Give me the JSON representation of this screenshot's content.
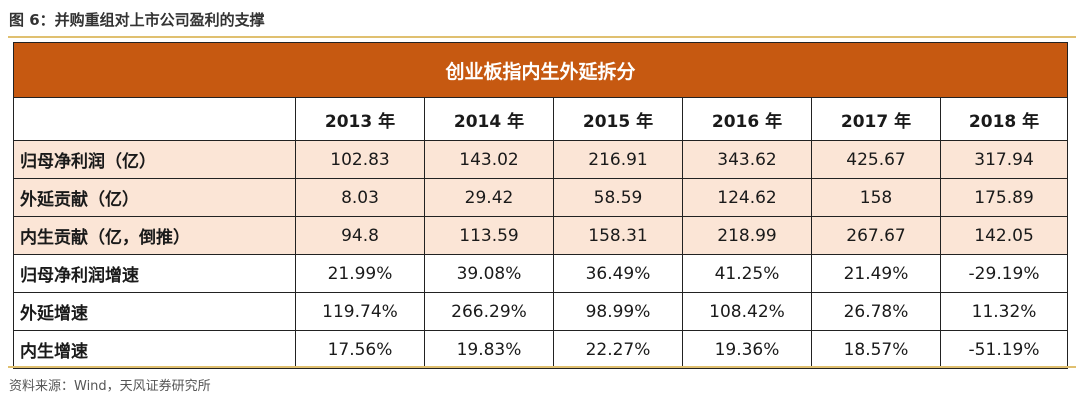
{
  "figure": {
    "title": "图 6：并购重组对上市公司盈利的支撑",
    "source": "资料来源：Wind，天风证券研究所"
  },
  "table": {
    "banner": "创业板指内生外延拆分",
    "years": [
      "2013 年",
      "2014 年",
      "2015 年",
      "2016 年",
      "2017 年",
      "2018 年"
    ],
    "rows": [
      {
        "label": "归母净利润（亿）",
        "values": [
          "102.83",
          "143.02",
          "216.91",
          "343.62",
          "425.67",
          "317.94"
        ]
      },
      {
        "label": "外延贡献（亿）",
        "values": [
          "8.03",
          "29.42",
          "58.59",
          "124.62",
          "158",
          "175.89"
        ]
      },
      {
        "label": "内生贡献（亿，倒推）",
        "values": [
          "94.8",
          "113.59",
          "158.31",
          "218.99",
          "267.67",
          "142.05"
        ]
      },
      {
        "label": "归母净利润增速",
        "values": [
          "21.99%",
          "39.08%",
          "36.49%",
          "41.25%",
          "21.49%",
          "-29.19%"
        ]
      },
      {
        "label": "外延增速",
        "values": [
          "119.74%",
          "266.29%",
          "98.99%",
          "108.42%",
          "26.78%",
          "11.32%"
        ]
      },
      {
        "label": "内生增速",
        "values": [
          "17.56%",
          "19.83%",
          "22.27%",
          "19.36%",
          "18.57%",
          "-51.19%"
        ]
      }
    ],
    "colors": {
      "banner": "#c65911",
      "shaded_row": "#fbe5d6",
      "rule": "#e0c070"
    }
  }
}
